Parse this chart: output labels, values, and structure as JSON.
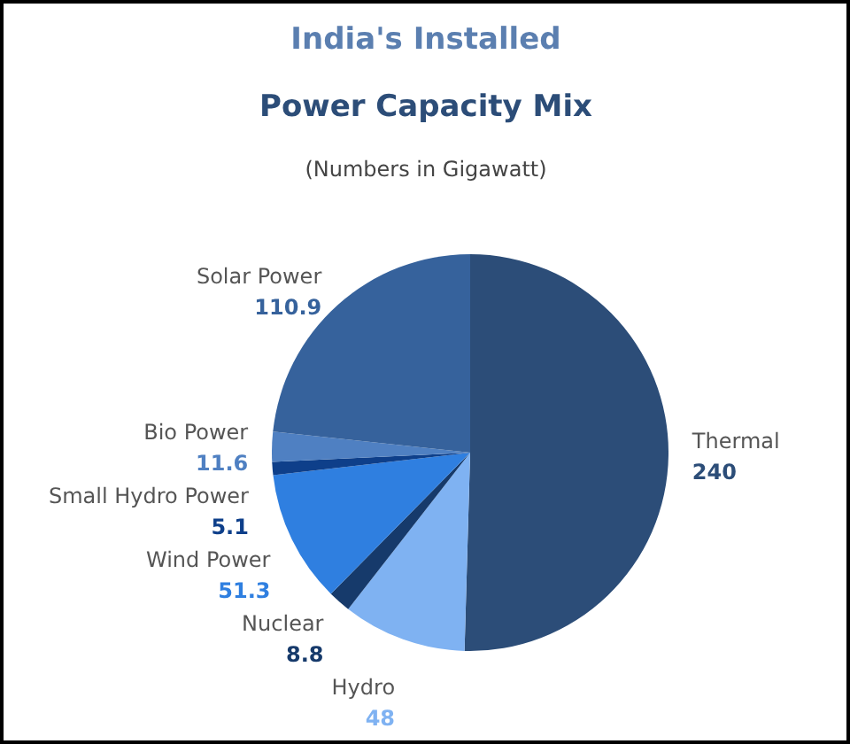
{
  "chart_data": {
    "type": "pie",
    "title": "India's Installed Power Capacity Mix",
    "subtitle": "(Numbers in Gigawatt)",
    "categories": [
      "Thermal",
      "Hydro",
      "Nuclear",
      "Wind Power",
      "Small Hydro Power",
      "Bio Power",
      "Solar Power"
    ],
    "values": [
      240,
      48,
      8.8,
      51.3,
      5.1,
      11.6,
      110.9
    ],
    "colors": [
      "#2c4d78",
      "#7fb2f2",
      "#163a6b",
      "#2f7fe0",
      "#0e3f8a",
      "#4f80c2",
      "#36629c"
    ],
    "data_labels": true
  }
}
